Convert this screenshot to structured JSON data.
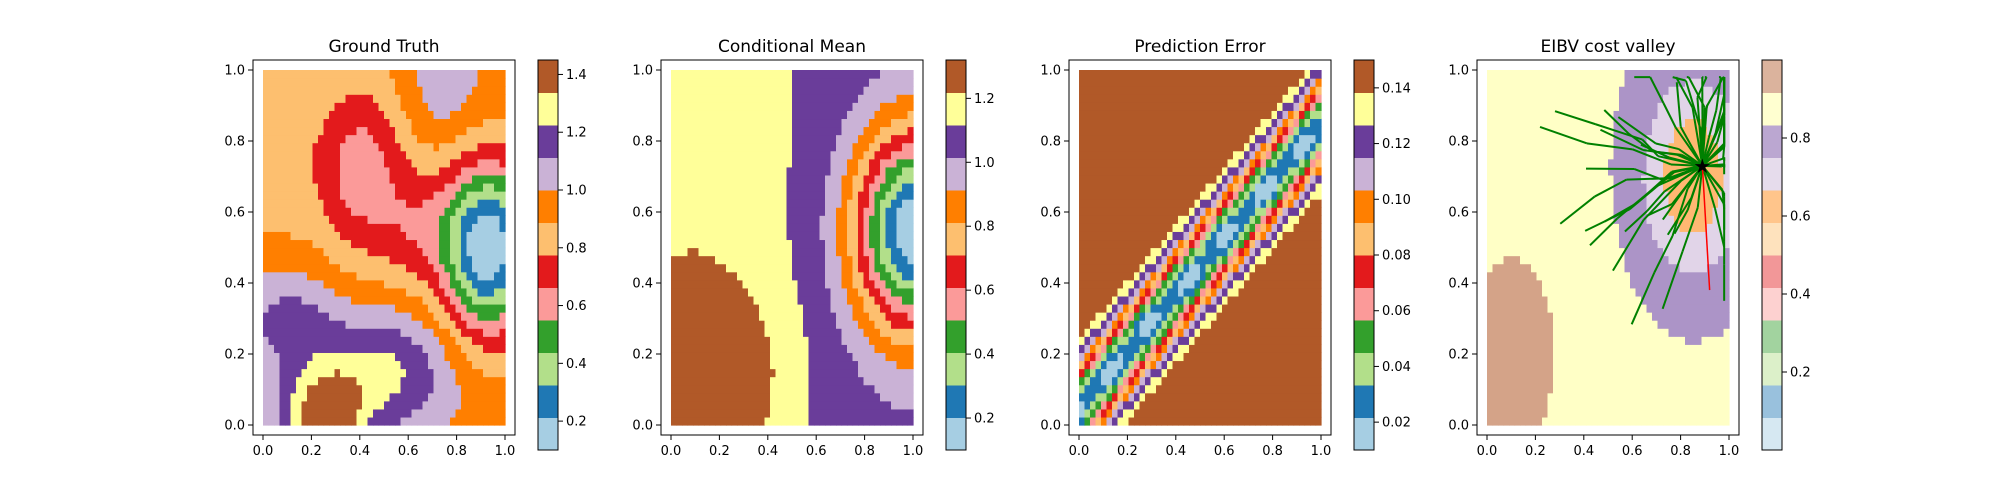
{
  "figure": {
    "panels": [
      {
        "title": "Ground Truth"
      },
      {
        "title": "Conditional Mean"
      },
      {
        "title": "Prediction Error"
      },
      {
        "title": "EIBV cost valley"
      }
    ]
  },
  "chart_data": [
    {
      "type": "heatmap",
      "title": "Ground Truth",
      "xlabel": "",
      "ylabel": "",
      "xlim": [
        0,
        1
      ],
      "ylim": [
        0,
        1
      ],
      "xticks": [
        "0.0",
        "0.2",
        "0.4",
        "0.6",
        "0.8",
        "1.0"
      ],
      "yticks": [
        "0.0",
        "0.2",
        "0.4",
        "0.6",
        "0.8",
        "1.0"
      ],
      "colormap": "Paired",
      "colorbar": {
        "min": 0.1,
        "max": 1.45,
        "ticks": [
          "0.2",
          "0.4",
          "0.6",
          "0.8",
          "1.0",
          "1.2",
          "1.4"
        ]
      },
      "field_description_points": [
        {
          "x": 0.9,
          "y": 0.5,
          "value": 0.12
        },
        {
          "x": 0.25,
          "y": 0.06,
          "value": 1.4
        },
        {
          "x": 0.4,
          "y": 0.9,
          "value": 0.6
        },
        {
          "x": 0.75,
          "y": 0.9,
          "value": 1.0
        },
        {
          "x": 0.2,
          "y": 0.4,
          "value": 0.95
        }
      ]
    },
    {
      "type": "heatmap",
      "title": "Conditional Mean",
      "xlabel": "",
      "ylabel": "",
      "xlim": [
        0,
        1
      ],
      "ylim": [
        0,
        1
      ],
      "xticks": [
        "0.0",
        "0.2",
        "0.4",
        "0.6",
        "0.8",
        "1.0"
      ],
      "yticks": [
        "0.0",
        "0.2",
        "0.4",
        "0.6",
        "0.8",
        "1.0"
      ],
      "colormap": "Paired",
      "colorbar": {
        "min": 0.1,
        "max": 1.32,
        "ticks": [
          "0.2",
          "0.4",
          "0.6",
          "0.8",
          "1.0",
          "1.2"
        ]
      },
      "field_description_points": [
        {
          "x": 0.97,
          "y": 0.55,
          "value": 0.15
        },
        {
          "x": 0.18,
          "y": 0.13,
          "value": 1.3
        },
        {
          "x": 0.1,
          "y": 0.8,
          "value": 1.15
        },
        {
          "x": 0.7,
          "y": 0.9,
          "value": 1.0
        }
      ]
    },
    {
      "type": "heatmap",
      "title": "Prediction Error",
      "xlabel": "",
      "ylabel": "",
      "xlim": [
        0,
        1
      ],
      "ylim": [
        0,
        1
      ],
      "xticks": [
        "0.0",
        "0.2",
        "0.4",
        "0.6",
        "0.8",
        "1.0"
      ],
      "yticks": [
        "0.0",
        "0.2",
        "0.4",
        "0.6",
        "0.8",
        "1.0"
      ],
      "colormap": "Paired",
      "colorbar": {
        "min": 0.01,
        "max": 0.15,
        "ticks": [
          "0.02",
          "0.04",
          "0.06",
          "0.08",
          "0.10",
          "0.12",
          "0.14"
        ]
      },
      "valley_points": [
        {
          "x": 0.1,
          "y": 0.08
        },
        {
          "x": 0.22,
          "y": 0.15
        },
        {
          "x": 0.38,
          "y": 0.3
        },
        {
          "x": 0.55,
          "y": 0.42
        },
        {
          "x": 0.7,
          "y": 0.55
        },
        {
          "x": 0.85,
          "y": 0.72
        }
      ]
    },
    {
      "type": "heatmap",
      "title": "EIBV cost valley",
      "xlabel": "",
      "ylabel": "",
      "xlim": [
        0,
        1
      ],
      "ylim": [
        0,
        1
      ],
      "xticks": [
        "0.0",
        "0.2",
        "0.4",
        "0.6",
        "0.8",
        "1.0"
      ],
      "yticks": [
        "0.0",
        "0.2",
        "0.4",
        "0.6",
        "0.8",
        "1.0"
      ],
      "colormap": "Paired (translucent)",
      "colorbar": {
        "min": 0.0,
        "max": 1.0,
        "ticks": [
          "0.2",
          "0.4",
          "0.6",
          "0.8"
        ]
      },
      "star_marker": {
        "x": 0.89,
        "y": 0.73
      },
      "tree_color": "#008000",
      "highlight_path_color": "#ff0000"
    }
  ]
}
